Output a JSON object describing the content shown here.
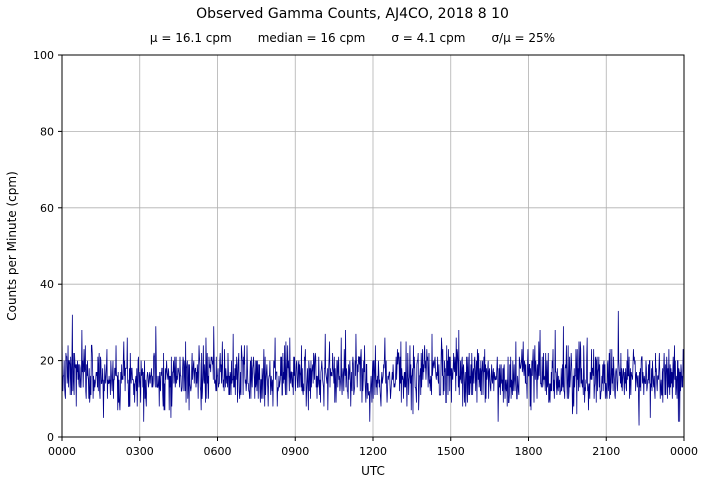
{
  "title": "Observed Gamma Counts, AJ4CO, 2018 8 10",
  "stats_bar": {
    "mu": "μ = 16.1 cpm",
    "median": "median = 16 cpm",
    "sigma": "σ = 4.1 cpm",
    "ratio": "σ/μ = 25%"
  },
  "chart_data": {
    "type": "line",
    "title": "Observed Gamma Counts, AJ4CO, 2018 8 10",
    "xlabel": "UTC",
    "ylabel": "Counts per Minute (cpm)",
    "x_tick_labels": [
      "0000",
      "0300",
      "0600",
      "0900",
      "1200",
      "1500",
      "1800",
      "2100",
      "0000"
    ],
    "y_ticks": [
      0,
      20,
      40,
      60,
      80,
      100
    ],
    "ylim": [
      0,
      100
    ],
    "grid": true,
    "line_color": "#00008B",
    "grid_color": "#b0b0b0",
    "stats": {
      "mean_cpm": 16.1,
      "median_cpm": 16,
      "sigma_cpm": 4.1,
      "sigma_over_mu_pct": 25
    },
    "observed_range_cpm": [
      3,
      33
    ],
    "n_points": 1440,
    "seed": 7,
    "spikes": [
      {
        "minute": 24,
        "value": 32
      },
      {
        "minute": 1287,
        "value": 33
      }
    ],
    "dips": [
      {
        "minute": 96,
        "value": 5
      },
      {
        "minute": 1335,
        "value": 3
      }
    ]
  }
}
